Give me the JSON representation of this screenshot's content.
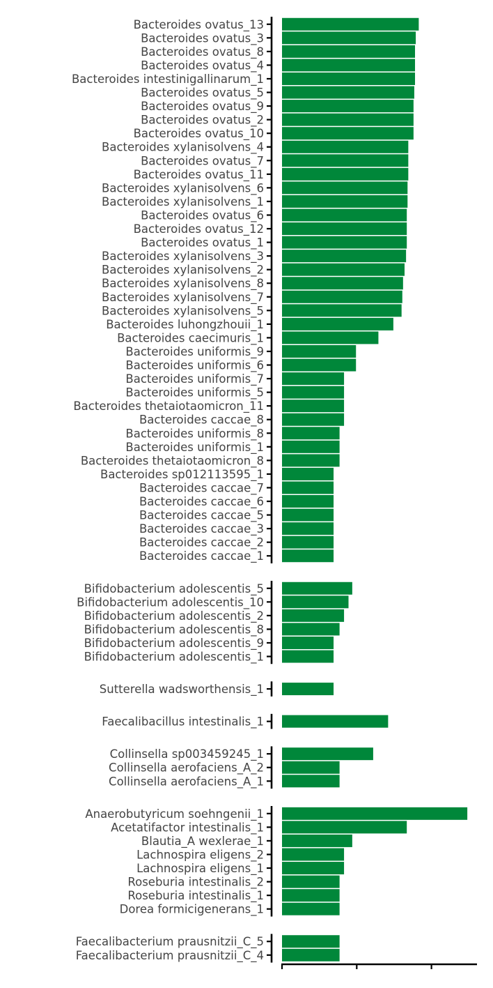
{
  "chart_data": {
    "type": "bar",
    "orientation": "horizontal",
    "bar_color": "#00873A",
    "axis_color": "#000000",
    "label_color": "#444444",
    "xlim": [
      0,
      2.6
    ],
    "x_ticks": [
      0,
      1,
      2
    ],
    "x_tick_labels_shown": false,
    "title": "",
    "xlabel": "",
    "ylabel": "",
    "grid": false,
    "legend": "none",
    "groups": [
      {
        "categories": [
          "Bacteroides ovatus_13",
          "Bacteroides ovatus_3",
          "Bacteroides ovatus_8",
          "Bacteroides ovatus_4",
          "Bacteroides intestinigallinarum_1",
          "Bacteroides ovatus_5",
          "Bacteroides ovatus_9",
          "Bacteroides ovatus_2",
          "Bacteroides ovatus_10",
          "Bacteroides xylanisolvens_4",
          "Bacteroides ovatus_7",
          "Bacteroides ovatus_11",
          "Bacteroides xylanisolvens_6",
          "Bacteroides xylanisolvens_1",
          "Bacteroides ovatus_6",
          "Bacteroides ovatus_12",
          "Bacteroides ovatus_1",
          "Bacteroides xylanisolvens_3",
          "Bacteroides xylanisolvens_2",
          "Bacteroides xylanisolvens_8",
          "Bacteroides xylanisolvens_7",
          "Bacteroides xylanisolvens_5",
          "Bacteroides luhongzhouii_1",
          "Bacteroides caecimuris_1",
          "Bacteroides uniformis_9",
          "Bacteroides uniformis_6",
          "Bacteroides uniformis_7",
          "Bacteroides uniformis_5",
          "Bacteroides thetaiotaomicron_11",
          "Bacteroides caccae_8",
          "Bacteroides uniformis_8",
          "Bacteroides uniformis_1",
          "Bacteroides thetaiotaomicron_8",
          "Bacteroides sp012113595_1",
          "Bacteroides caccae_7",
          "Bacteroides caccae_6",
          "Bacteroides caccae_5",
          "Bacteroides caccae_3",
          "Bacteroides caccae_2",
          "Bacteroides caccae_1"
        ],
        "values": [
          1.83,
          1.79,
          1.78,
          1.78,
          1.78,
          1.77,
          1.76,
          1.76,
          1.76,
          1.69,
          1.69,
          1.69,
          1.68,
          1.68,
          1.67,
          1.67,
          1.67,
          1.66,
          1.64,
          1.62,
          1.61,
          1.6,
          1.49,
          1.29,
          0.99,
          0.99,
          0.83,
          0.83,
          0.83,
          0.83,
          0.77,
          0.77,
          0.77,
          0.69,
          0.69,
          0.69,
          0.69,
          0.69,
          0.69,
          0.69
        ]
      },
      {
        "categories": [
          "Bifidobacterium adolescentis_5",
          "Bifidobacterium adolescentis_10",
          "Bifidobacterium adolescentis_2",
          "Bifidobacterium adolescentis_8",
          "Bifidobacterium adolescentis_9",
          "Bifidobacterium adolescentis_1"
        ],
        "values": [
          0.94,
          0.89,
          0.83,
          0.77,
          0.69,
          0.69
        ]
      },
      {
        "categories": [
          "Sutterella wadsworthensis_1"
        ],
        "values": [
          0.69
        ]
      },
      {
        "categories": [
          "Faecalibacillus intestinalis_1"
        ],
        "values": [
          1.42
        ]
      },
      {
        "categories": [
          "Collinsella sp003459245_1",
          "Collinsella aerofaciens_A_2",
          "Collinsella aerofaciens_A_1"
        ],
        "values": [
          1.22,
          0.77,
          0.77
        ]
      },
      {
        "categories": [
          "Anaerobutyricum soehngenii_1",
          "Acetatifactor intestinalis_1",
          "Blautia_A wexlerae_1",
          "Lachnospira eligens_2",
          "Lachnospira eligens_1",
          "Roseburia intestinalis_2",
          "Roseburia intestinalis_1",
          "Dorea formicigenerans_1"
        ],
        "values": [
          2.48,
          1.67,
          0.94,
          0.83,
          0.83,
          0.77,
          0.77,
          0.77
        ]
      },
      {
        "categories": [
          "Faecalibacterium prausnitzii_C_5",
          "Faecalibacterium prausnitzii_C_4"
        ],
        "values": [
          0.77,
          0.77
        ]
      }
    ]
  }
}
